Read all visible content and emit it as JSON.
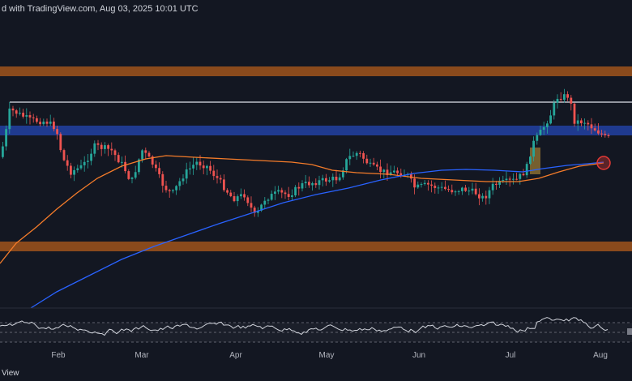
{
  "header": {
    "caption": "d with TradingView.com, Aug 03, 2025 10:01 UTC"
  },
  "footer": {
    "brand": "View"
  },
  "colors": {
    "background": "#131722",
    "resistance_band": "#8a4a1c",
    "blue_band": "#1f3a8f",
    "support_band": "#8a4a1c",
    "white_line": "#e0e3eb",
    "ma_orange": "#f57c2a",
    "ma_blue": "#2962ff",
    "candle_up": "#26a69a",
    "candle_down": "#ef5350",
    "rsi_line": "#d1d4dc",
    "highlight_box": "#c99a3a",
    "marker_circle": "#e53935"
  },
  "x_axis": {
    "months": [
      "Feb",
      "Mar",
      "Apr",
      "May",
      "Jun",
      "Jul",
      "Aug"
    ]
  },
  "annotations": {
    "upper_resistance_band": "orange horizontal zone",
    "blue_zone": "blue horizontal zone",
    "lower_support_band": "orange horizontal zone",
    "cross_marker": "red circle marking moving-average crossover",
    "breakout_box": "highlighted breakout area"
  }
}
